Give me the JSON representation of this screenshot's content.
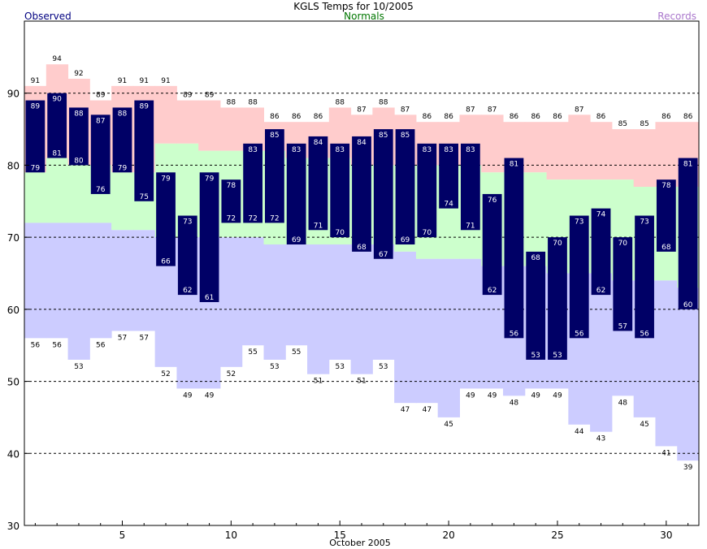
{
  "chart_data": {
    "type": "bar",
    "title": "KGLS Temps for 10/2005",
    "legend": {
      "observed": "Observed",
      "normals": "Normals",
      "records": "Records",
      "placement": "top"
    },
    "xlabel": "October 2005",
    "ylabel": "",
    "xlim": [
      0.5,
      31.5
    ],
    "ylim": [
      30,
      100
    ],
    "x_ticks": [
      5,
      10,
      15,
      20,
      25,
      30
    ],
    "y_ticks": [
      30,
      40,
      50,
      60,
      70,
      80,
      90
    ],
    "grid_dashed_y": [
      40,
      50,
      60,
      70,
      80,
      90
    ],
    "days": [
      1,
      2,
      3,
      4,
      5,
      6,
      7,
      8,
      9,
      10,
      11,
      12,
      13,
      14,
      15,
      16,
      17,
      18,
      19,
      20,
      21,
      22,
      23,
      24,
      25,
      26,
      27,
      28,
      29,
      30,
      31
    ],
    "series": [
      {
        "name": "Observed",
        "kind": "high",
        "values": [
          89,
          90,
          88,
          87,
          88,
          89,
          79,
          73,
          79,
          78,
          83,
          85,
          83,
          84,
          83,
          84,
          85,
          85,
          83,
          83,
          83,
          76,
          81,
          68,
          70,
          73,
          74,
          70,
          73,
          78,
          81
        ]
      },
      {
        "name": "Observed",
        "kind": "low",
        "values": [
          79,
          81,
          80,
          76,
          79,
          75,
          66,
          62,
          61,
          72,
          72,
          72,
          69,
          71,
          70,
          68,
          67,
          69,
          70,
          74,
          71,
          62,
          56,
          53,
          53,
          56,
          62,
          57,
          56,
          68,
          60
        ]
      },
      {
        "name": "Records",
        "kind": "record_high",
        "values": [
          91,
          94,
          92,
          89,
          91,
          91,
          91,
          89,
          89,
          88,
          88,
          86,
          86,
          86,
          88,
          87,
          88,
          87,
          86,
          86,
          87,
          87,
          86,
          86,
          86,
          87,
          86,
          85,
          85,
          86,
          86
        ]
      },
      {
        "name": "Records",
        "kind": "record_low",
        "values": [
          56,
          56,
          53,
          56,
          57,
          57,
          52,
          49,
          49,
          52,
          55,
          53,
          55,
          51,
          53,
          51,
          53,
          47,
          47,
          45,
          49,
          49,
          48,
          49,
          49,
          44,
          43,
          48,
          45,
          41,
          39
        ]
      },
      {
        "name": "Normals",
        "kind": "normal_high",
        "values": [
          79,
          81,
          80,
          80,
          79,
          79,
          83,
          83,
          82,
          82,
          82,
          82,
          81,
          81,
          81,
          80,
          80,
          80,
          80,
          80,
          80,
          79,
          79,
          79,
          78,
          78,
          78,
          78,
          77,
          77,
          77
        ]
      },
      {
        "name": "Normals",
        "kind": "normal_low",
        "values": [
          72,
          72,
          72,
          72,
          71,
          71,
          70,
          70,
          70,
          70,
          70,
          69,
          69,
          69,
          69,
          69,
          69,
          68,
          67,
          67,
          67,
          66,
          66,
          66,
          65,
          65,
          65,
          64,
          64,
          64,
          63
        ]
      }
    ],
    "colors": {
      "observed": "#000066",
      "record_band": "#ffcccc",
      "normal_band": "#ccffcc",
      "low_band": "#ccccff",
      "observed_text": "#000080",
      "normals_text": "#007700",
      "records_text": "#aa77cc"
    }
  }
}
